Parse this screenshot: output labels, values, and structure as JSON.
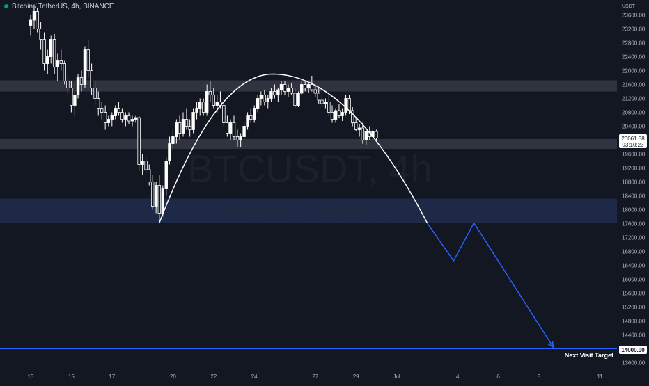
{
  "header": {
    "title": "Bitcoin / TetherUS, 4h, BINANCE"
  },
  "watermark": {
    "symbol": "BTCUSDT, 4h",
    "name": "Bitcoin / TetherUS"
  },
  "price_axis": {
    "currency": "USDT"
  },
  "current_price": {
    "label": "20061.58",
    "countdown": "03:10:23",
    "value": 20061.58
  },
  "target": {
    "label": "14000.00",
    "text": "Next Visit Target",
    "value": 14000
  },
  "colors": {
    "background": "#131722",
    "up": "#ffffff",
    "down": "#ffffff",
    "resistance_zone": "#363a45",
    "support_zone": "#1e2a4a",
    "projection": "#2962ff",
    "arc": "#ffffff",
    "axis_text": "#b2b5be"
  },
  "chart_data": {
    "type": "candlestick",
    "title": "Bitcoin / TetherUS, 4h, BINANCE",
    "y_ticks": [
      23600,
      23200,
      22800,
      22400,
      22000,
      21600,
      21200,
      20800,
      20400,
      19600,
      19200,
      18800,
      18400,
      18000,
      17600,
      17200,
      16800,
      16400,
      16000,
      15600,
      15200,
      14800,
      14400,
      13600
    ],
    "ylim": [
      13400,
      23900
    ],
    "x_ticks": [
      {
        "label": "13",
        "x": 0
      },
      {
        "label": "15",
        "x": 2
      },
      {
        "label": "17",
        "x": 4
      },
      {
        "label": "20",
        "x": 7
      },
      {
        "label": "22",
        "x": 9
      },
      {
        "label": "24",
        "x": 11
      },
      {
        "label": "27",
        "x": 14
      },
      {
        "label": "29",
        "x": 16
      },
      {
        "label": "Jul",
        "x": 18
      },
      {
        "label": "4",
        "x": 21
      },
      {
        "label": "6",
        "x": 23
      },
      {
        "label": "8",
        "x": 25
      },
      {
        "label": "11",
        "x": 28
      }
    ],
    "zones": [
      {
        "name": "resistance",
        "from": 21400,
        "to": 21720
      },
      {
        "name": "support-upper",
        "from": 19750,
        "to": 20030
      },
      {
        "name": "support-lower",
        "from": 17620,
        "to": 18320
      }
    ],
    "horizontal_lines": [
      {
        "name": "current",
        "value": 20061.58
      },
      {
        "name": "low",
        "value": 17620
      },
      {
        "name": "target",
        "value": 14000
      }
    ],
    "arc": {
      "x_start": 6.33,
      "x_peak": 11.9,
      "x_end": 19.5,
      "y_start": 17620,
      "y_peak": 21900,
      "y_end": 17620
    },
    "projection": [
      {
        "x": 19.5,
        "y": 17620
      },
      {
        "x": 20.8,
        "y": 16530
      },
      {
        "x": 21.8,
        "y": 17620
      },
      {
        "x": 25.7,
        "y": 14050
      }
    ],
    "candles": [
      [
        0.0,
        23300,
        23600,
        23000,
        23450
      ],
      [
        0.17,
        23450,
        23900,
        23200,
        23700
      ],
      [
        0.33,
        23700,
        23800,
        23100,
        23200
      ],
      [
        0.5,
        23200,
        23400,
        22600,
        22900
      ],
      [
        0.67,
        22900,
        23100,
        22000,
        22200
      ],
      [
        0.83,
        22200,
        22600,
        21900,
        22400
      ],
      [
        1.0,
        22400,
        23000,
        22200,
        22900
      ],
      [
        1.17,
        22900,
        23050,
        21900,
        22100
      ],
      [
        1.33,
        22100,
        22500,
        21700,
        22300
      ],
      [
        1.5,
        22300,
        22600,
        22000,
        22200
      ],
      [
        1.67,
        22200,
        22300,
        21600,
        21700
      ],
      [
        1.83,
        21700,
        21900,
        21300,
        21500
      ],
      [
        2.0,
        21500,
        21700,
        20800,
        21000
      ],
      [
        2.17,
        21000,
        21400,
        20700,
        21300
      ],
      [
        2.33,
        21300,
        21900,
        21200,
        21800
      ],
      [
        2.5,
        21800,
        22000,
        21400,
        21600
      ],
      [
        2.67,
        21600,
        22700,
        21500,
        22600
      ],
      [
        2.83,
        22600,
        22900,
        21800,
        22000
      ],
      [
        3.0,
        22000,
        22200,
        21300,
        21500
      ],
      [
        3.17,
        21500,
        21700,
        21000,
        21200
      ],
      [
        3.33,
        21200,
        21400,
        20700,
        20900
      ],
      [
        3.5,
        20900,
        21100,
        20600,
        20800
      ],
      [
        3.67,
        20800,
        21000,
        20300,
        20500
      ],
      [
        3.83,
        20500,
        20700,
        20400,
        20600
      ],
      [
        4.0,
        20600,
        20800,
        20400,
        20700
      ],
      [
        4.17,
        20700,
        21000,
        20600,
        20900
      ],
      [
        4.33,
        20900,
        21100,
        20700,
        20800
      ],
      [
        4.5,
        20800,
        20900,
        20500,
        20600
      ],
      [
        4.67,
        20600,
        20800,
        20400,
        20700
      ],
      [
        4.83,
        20700,
        20800,
        20450,
        20550
      ],
      [
        5.0,
        20550,
        20700,
        20400,
        20600
      ],
      [
        5.17,
        20600,
        20700,
        20500,
        20650
      ],
      [
        5.33,
        20650,
        20700,
        19100,
        19300
      ],
      [
        5.5,
        19300,
        19600,
        19000,
        19400
      ],
      [
        5.67,
        19400,
        19500,
        19050,
        19150
      ],
      [
        5.83,
        19150,
        19300,
        18700,
        18800
      ],
      [
        6.0,
        18800,
        19000,
        18000,
        18100
      ],
      [
        6.17,
        18100,
        18800,
        17900,
        18700
      ],
      [
        6.33,
        18700,
        19000,
        17650,
        17900
      ],
      [
        6.5,
        17900,
        18700,
        17800,
        18600
      ],
      [
        6.67,
        18600,
        19500,
        18400,
        19400
      ],
      [
        6.83,
        19400,
        20100,
        19300,
        19900
      ],
      [
        7.0,
        19900,
        20300,
        19700,
        20100
      ],
      [
        7.17,
        20100,
        20600,
        19900,
        20500
      ],
      [
        7.33,
        20500,
        20700,
        20000,
        20200
      ],
      [
        7.5,
        20200,
        20800,
        20100,
        20600
      ],
      [
        7.67,
        20600,
        20900,
        20300,
        20400
      ],
      [
        7.83,
        20400,
        20600,
        20100,
        20300
      ],
      [
        8.0,
        20300,
        20900,
        20200,
        20800
      ],
      [
        8.17,
        20800,
        21100,
        20600,
        20900
      ],
      [
        8.33,
        20900,
        21200,
        20700,
        21100
      ],
      [
        8.5,
        21100,
        21200,
        20700,
        20800
      ],
      [
        8.67,
        20800,
        21600,
        20700,
        21400
      ],
      [
        8.83,
        21400,
        21700,
        21100,
        21300
      ],
      [
        9.0,
        21300,
        21500,
        20900,
        21000
      ],
      [
        9.17,
        21000,
        21300,
        20800,
        21100
      ],
      [
        9.33,
        21100,
        21400,
        20900,
        21000
      ],
      [
        9.5,
        21000,
        21200,
        20400,
        20500
      ],
      [
        9.67,
        20500,
        20700,
        20100,
        20200
      ],
      [
        9.83,
        20200,
        20600,
        20000,
        20500
      ],
      [
        10.0,
        20500,
        20700,
        20000,
        20100
      ],
      [
        10.17,
        20100,
        20300,
        19800,
        20000
      ],
      [
        10.33,
        20000,
        20200,
        19800,
        20100
      ],
      [
        10.5,
        20100,
        20500,
        20000,
        20400
      ],
      [
        10.67,
        20400,
        20800,
        20300,
        20700
      ],
      [
        10.83,
        20700,
        20900,
        20500,
        20600
      ],
      [
        11.0,
        20600,
        21000,
        20500,
        20900
      ],
      [
        11.17,
        20900,
        21300,
        20800,
        21200
      ],
      [
        11.33,
        21200,
        21400,
        21000,
        21300
      ],
      [
        11.5,
        21300,
        21450,
        21000,
        21100
      ],
      [
        11.67,
        21100,
        21300,
        20900,
        21200
      ],
      [
        11.83,
        21200,
        21500,
        21100,
        21400
      ],
      [
        12.0,
        21400,
        21600,
        21200,
        21300
      ],
      [
        12.17,
        21300,
        21500,
        21100,
        21450
      ],
      [
        12.33,
        21450,
        21700,
        21300,
        21600
      ],
      [
        12.5,
        21600,
        21700,
        21300,
        21400
      ],
      [
        12.67,
        21400,
        21600,
        21250,
        21500
      ],
      [
        12.83,
        21500,
        21650,
        21300,
        21350
      ],
      [
        13.0,
        21350,
        21500,
        20900,
        21000
      ],
      [
        13.17,
        21000,
        21400,
        20950,
        21350
      ],
      [
        13.33,
        21350,
        21700,
        21300,
        21600
      ],
      [
        13.5,
        21600,
        21700,
        21400,
        21500
      ],
      [
        13.67,
        21500,
        21650,
        21350,
        21600
      ],
      [
        13.83,
        21600,
        21850,
        21400,
        21450
      ],
      [
        14.0,
        21450,
        21600,
        21250,
        21350
      ],
      [
        14.17,
        21350,
        21500,
        21050,
        21150
      ],
      [
        14.33,
        21150,
        21300,
        20950,
        21050
      ],
      [
        14.5,
        21050,
        21200,
        20900,
        21100
      ],
      [
        14.67,
        21100,
        21300,
        20700,
        20800
      ],
      [
        14.83,
        20800,
        21000,
        20500,
        20600
      ],
      [
        15.0,
        20600,
        20900,
        20500,
        20850
      ],
      [
        15.17,
        20850,
        21050,
        20650,
        20700
      ],
      [
        15.33,
        20700,
        20900,
        20550,
        20800
      ],
      [
        15.5,
        20800,
        21300,
        20700,
        21200
      ],
      [
        15.67,
        21200,
        21300,
        20750,
        20850
      ],
      [
        15.83,
        20850,
        20950,
        20400,
        20500
      ],
      [
        16.0,
        20500,
        20650,
        20250,
        20300
      ],
      [
        16.17,
        20300,
        20450,
        20100,
        20350
      ],
      [
        16.33,
        20350,
        20500,
        19900,
        20000
      ],
      [
        16.5,
        20000,
        20300,
        19850,
        20250
      ],
      [
        16.67,
        20250,
        20400,
        20000,
        20100
      ],
      [
        16.83,
        20100,
        20350,
        20000,
        20250
      ],
      [
        17.0,
        20250,
        20300,
        20000,
        20061.58
      ]
    ]
  }
}
